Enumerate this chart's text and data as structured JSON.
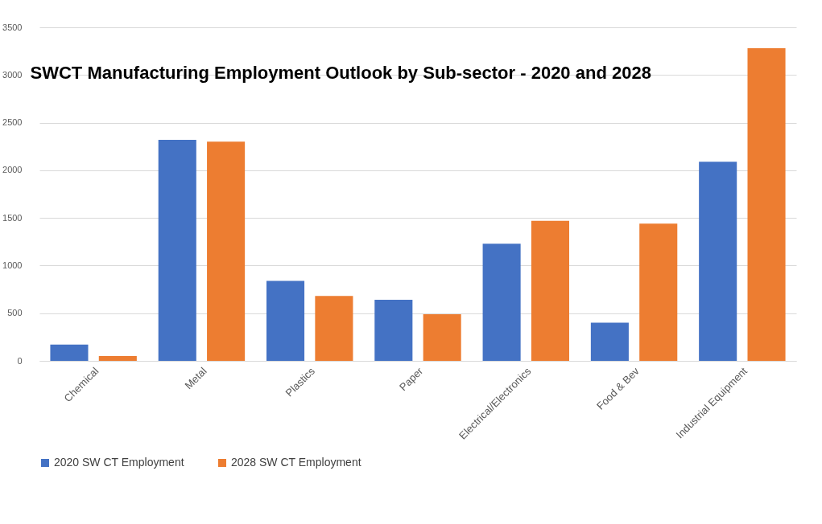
{
  "chart_data": {
    "type": "bar",
    "title": "SWCT Manufacturing Employment Outlook by Sub-sector - 2020 and 2028",
    "categories": [
      "Chemical",
      "Metal",
      "Plastics",
      "Paper",
      "Electrical/Electronics",
      "Food & Bev",
      "Industrial Equipment"
    ],
    "series": [
      {
        "name": "2020 SW CT Employment",
        "color": "#4472c4",
        "values": [
          170,
          2320,
          840,
          640,
          1230,
          400,
          2090
        ]
      },
      {
        "name": "2028 SW CT Employment",
        "color": "#ed7d31",
        "values": [
          50,
          2300,
          680,
          490,
          1470,
          1440,
          3280
        ]
      }
    ],
    "ylim": [
      0,
      3500
    ],
    "yticks": [
      0,
      500,
      1000,
      1500,
      2000,
      2500,
      3000,
      3500
    ],
    "grid": "y",
    "legend": "bottom"
  }
}
